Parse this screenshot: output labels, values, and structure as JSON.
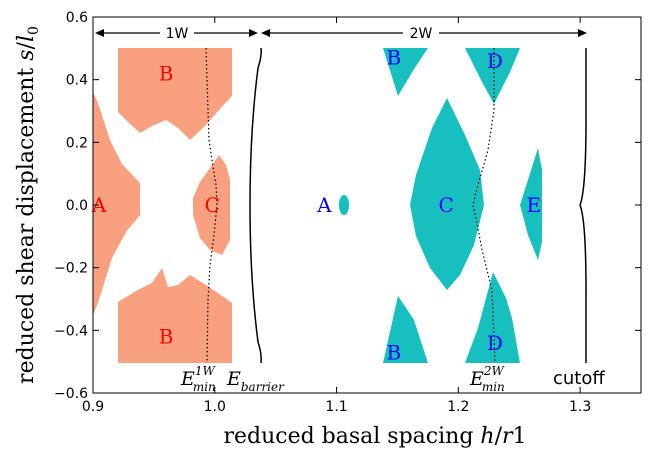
{
  "chart_data": {
    "type": "area",
    "xlabel": "reduced basal spacing h/r1",
    "ylabel": "reduced shear displacement s/l0",
    "xlim": [
      0.9,
      1.35
    ],
    "ylim": [
      -0.6,
      0.6
    ],
    "xticks": [
      "0.9",
      "1.0",
      "1.1",
      "1.2",
      "1.3"
    ],
    "yticks": [
      "−0.6",
      "−0.4",
      "−0.2",
      "0.0",
      "0.2",
      "0.4",
      "0.6"
    ],
    "grid": false,
    "regions": [
      {
        "label": "A",
        "group": "1W",
        "x": 0.905,
        "y": 0.0
      },
      {
        "label": "B",
        "group": "1W",
        "x": 0.96,
        "y": 0.42
      },
      {
        "label": "B",
        "group": "1W",
        "x": 0.96,
        "y": -0.42
      },
      {
        "label": "C",
        "group": "1W",
        "x": 0.998,
        "y": 0.0
      },
      {
        "label": "A",
        "group": "2W",
        "x": 1.09,
        "y": 0.0
      },
      {
        "label": "B",
        "group": "2W",
        "x": 1.147,
        "y": 0.47
      },
      {
        "label": "B",
        "group": "2W",
        "x": 1.147,
        "y": -0.47
      },
      {
        "label": "C",
        "group": "2W",
        "x": 1.19,
        "y": 0.0
      },
      {
        "label": "D",
        "group": "2W",
        "x": 1.23,
        "y": 0.46
      },
      {
        "label": "D",
        "group": "2W",
        "x": 1.23,
        "y": -0.44
      },
      {
        "label": "E",
        "group": "2W",
        "x": 1.262,
        "y": 0.0
      }
    ],
    "brackets": [
      {
        "label": "1W",
        "x_range": [
          0.9,
          1.038
        ]
      },
      {
        "label": "2W",
        "x_range": [
          1.038,
          1.306
        ]
      }
    ],
    "annotations": {
      "emin_1w": {
        "base": "E",
        "sup": "1W",
        "sub": "min"
      },
      "ebarrier": {
        "base": "E",
        "sub": "barrier"
      },
      "emin_2w": {
        "base": "E",
        "sup": "2W",
        "sub": "min"
      },
      "cutoff": "cutoff"
    },
    "colors": {
      "phase_1w": "#f9a07f",
      "phase_2w": "#17bfbf",
      "label_1w": "#ff0000",
      "label_2w": "#0000ff"
    }
  }
}
